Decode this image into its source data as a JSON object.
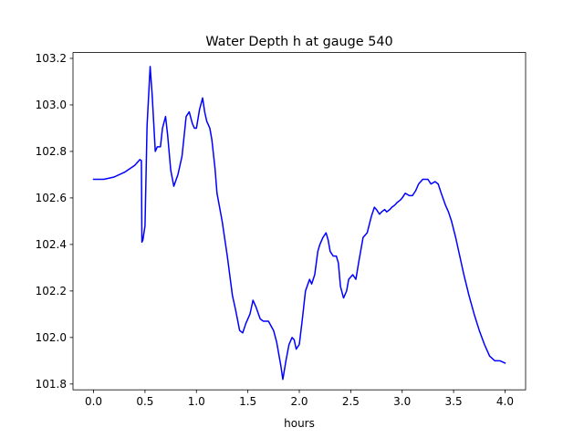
{
  "chart_data": {
    "type": "line",
    "title": "Water Depth h at gauge 540",
    "xlabel": "hours",
    "ylabel": "",
    "xlim": [
      -0.2,
      4.2
    ],
    "ylim": [
      101.775,
      103.225
    ],
    "xticks": [
      0.0,
      0.5,
      1.0,
      1.5,
      2.0,
      2.5,
      3.0,
      3.5,
      4.0
    ],
    "xtick_labels": [
      "0.0",
      "0.5",
      "1.0",
      "1.5",
      "2.0",
      "2.5",
      "3.0",
      "3.5",
      "4.0"
    ],
    "yticks": [
      101.8,
      102.0,
      102.2,
      102.4,
      102.6,
      102.8,
      103.0,
      103.2
    ],
    "ytick_labels": [
      "101.8",
      "102.0",
      "102.2",
      "102.4",
      "102.6",
      "102.8",
      "103.0",
      "103.2"
    ],
    "grid": false,
    "legend": "none",
    "series": [
      {
        "color": "#0000ff",
        "x": [
          0.0,
          0.1,
          0.2,
          0.3,
          0.4,
          0.45,
          0.465,
          0.47,
          0.48,
          0.5,
          0.52,
          0.55,
          0.57,
          0.6,
          0.62,
          0.65,
          0.67,
          0.7,
          0.72,
          0.75,
          0.78,
          0.82,
          0.86,
          0.9,
          0.93,
          0.96,
          0.98,
          1.0,
          1.03,
          1.06,
          1.08,
          1.1,
          1.13,
          1.15,
          1.18,
          1.2,
          1.25,
          1.3,
          1.35,
          1.38,
          1.42,
          1.45,
          1.48,
          1.52,
          1.55,
          1.58,
          1.62,
          1.65,
          1.7,
          1.75,
          1.78,
          1.82,
          1.84,
          1.87,
          1.9,
          1.93,
          1.95,
          1.97,
          2.0,
          2.03,
          2.06,
          2.1,
          2.12,
          2.15,
          2.18,
          2.2,
          2.23,
          2.26,
          2.28,
          2.3,
          2.33,
          2.36,
          2.38,
          2.4,
          2.43,
          2.46,
          2.48,
          2.52,
          2.55,
          2.58,
          2.62,
          2.66,
          2.7,
          2.73,
          2.75,
          2.78,
          2.8,
          2.83,
          2.85,
          2.88,
          2.9,
          2.93,
          2.95,
          2.98,
          3.0,
          3.03,
          3.07,
          3.1,
          3.13,
          3.16,
          3.2,
          3.25,
          3.28,
          3.32,
          3.35,
          3.38,
          3.42,
          3.45,
          3.48,
          3.52,
          3.56,
          3.6,
          3.65,
          3.7,
          3.75,
          3.8,
          3.85,
          3.9,
          3.95,
          4.0
        ],
        "y": [
          102.68,
          102.68,
          102.69,
          102.71,
          102.74,
          102.765,
          102.76,
          102.41,
          102.42,
          102.48,
          102.91,
          103.165,
          103.04,
          102.8,
          102.82,
          102.82,
          102.9,
          102.95,
          102.87,
          102.72,
          102.65,
          102.7,
          102.78,
          102.95,
          102.97,
          102.92,
          102.9,
          102.9,
          102.98,
          103.03,
          102.97,
          102.93,
          102.9,
          102.85,
          102.73,
          102.62,
          102.5,
          102.35,
          102.18,
          102.12,
          102.03,
          102.02,
          102.06,
          102.1,
          102.16,
          102.13,
          102.08,
          102.07,
          102.07,
          102.03,
          101.98,
          101.88,
          101.82,
          101.9,
          101.97,
          102.0,
          101.99,
          101.95,
          101.97,
          102.08,
          102.2,
          102.25,
          102.23,
          102.27,
          102.37,
          102.4,
          102.43,
          102.45,
          102.42,
          102.37,
          102.35,
          102.35,
          102.32,
          102.22,
          102.17,
          102.2,
          102.25,
          102.27,
          102.25,
          102.33,
          102.43,
          102.45,
          102.52,
          102.56,
          102.55,
          102.53,
          102.54,
          102.55,
          102.54,
          102.55,
          102.56,
          102.57,
          102.58,
          102.59,
          102.6,
          102.62,
          102.61,
          102.61,
          102.63,
          102.66,
          102.68,
          102.68,
          102.66,
          102.67,
          102.66,
          102.62,
          102.57,
          102.54,
          102.5,
          102.43,
          102.35,
          102.27,
          102.18,
          102.1,
          102.03,
          101.97,
          101.92,
          101.9,
          101.9,
          101.89
        ]
      }
    ]
  }
}
